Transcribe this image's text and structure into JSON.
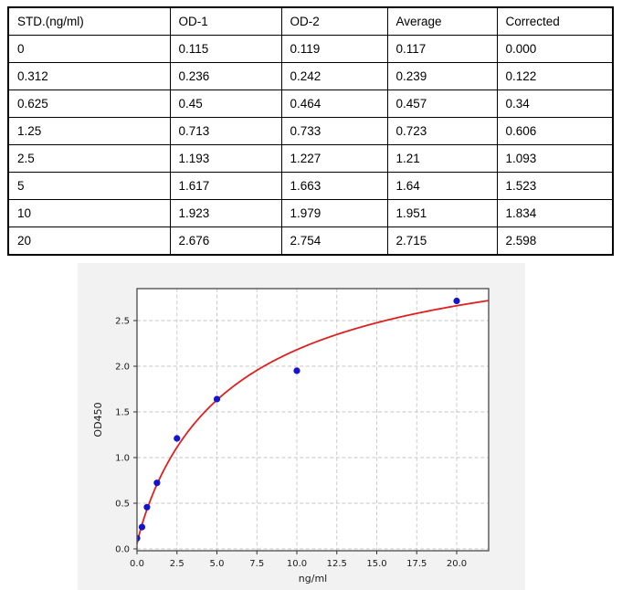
{
  "table": {
    "columns": [
      "STD.(ng/ml)",
      "OD-1",
      "OD-2",
      "Average",
      "Corrected"
    ],
    "rows": [
      [
        "0",
        "0.115",
        "0.119",
        "0.117",
        "0.000"
      ],
      [
        "0.312",
        "0.236",
        "0.242",
        "0.239",
        "0.122"
      ],
      [
        "0.625",
        "0.45",
        "0.464",
        "0.457",
        "0.34"
      ],
      [
        "1.25",
        "0.713",
        "0.733",
        "0.723",
        "0.606"
      ],
      [
        "2.5",
        "1.193",
        "1.227",
        "1.21",
        "1.093"
      ],
      [
        "5",
        "1.617",
        "1.663",
        "1.64",
        "1.523"
      ],
      [
        "10",
        "1.923",
        "1.979",
        "1.951",
        "1.834"
      ],
      [
        "20",
        "2.676",
        "2.754",
        "2.715",
        "2.598"
      ]
    ]
  },
  "chart_data": {
    "type": "scatter",
    "title": "",
    "xlabel": "ng/ml",
    "ylabel": "OD450",
    "x": [
      0,
      0.312,
      0.625,
      1.25,
      2.5,
      5,
      10,
      20
    ],
    "y": [
      0.117,
      0.239,
      0.457,
      0.723,
      1.21,
      1.64,
      1.951,
      2.715
    ],
    "x_ticks": [
      0,
      2.5,
      5,
      7.5,
      10,
      12.5,
      15,
      17.5,
      20
    ],
    "x_tick_labels": [
      "0.0",
      "2.5",
      "5.0",
      "7.5",
      "10.0",
      "12.5",
      "15.0",
      "17.5",
      "20.0"
    ],
    "y_ticks": [
      0,
      0.5,
      1,
      1.5,
      2,
      2.5
    ],
    "y_tick_labels": [
      "0.0",
      "0.5",
      "1.0",
      "1.5",
      "2.0",
      "2.5"
    ],
    "xlim": [
      0,
      22
    ],
    "ylim": [
      -0.02,
      2.85
    ],
    "grid": true,
    "grid_style": "dashed",
    "legend": "none",
    "fit_curve": {
      "model": "4PL-hill",
      "a": 0.055,
      "b": 0.92,
      "c": 6.2,
      "d": 3.55
    },
    "colors": {
      "points": "#1414cc",
      "curve": "#e02020",
      "grid": "#c6c6c6",
      "spine": "#555555",
      "figure_bg": "#f2f2f2",
      "plot_bg": "#ffffff",
      "text": "#1a1a1a"
    }
  }
}
